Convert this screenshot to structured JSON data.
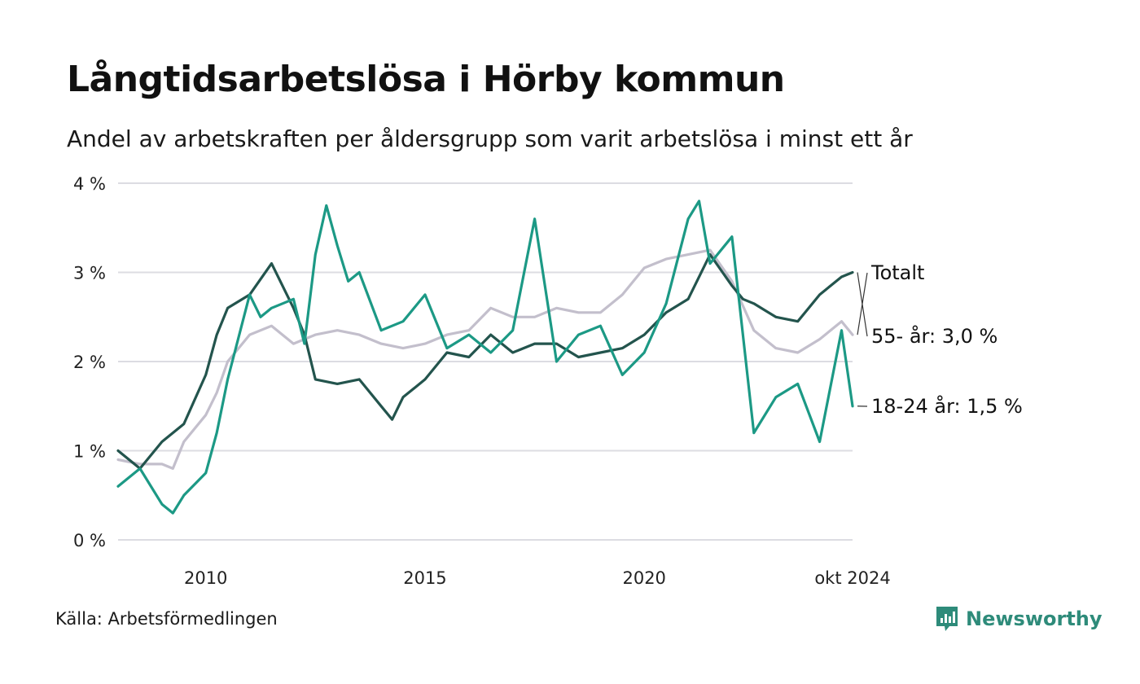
{
  "title": "Långtidsarbetslösa i Hörby kommun",
  "subtitle": "Andel av arbetskraften per åldersgrupp som varit arbetslösa i minst ett år",
  "source": "Källa: Arbetsförmedlingen",
  "brand": "Newsworthy",
  "chart_data": {
    "type": "line",
    "title": "Långtidsarbetslösa i Hörby kommun",
    "subtitle": "Andel av arbetskraften per åldersgrupp som varit arbetslösa i minst ett år",
    "xlabel": "",
    "ylabel": "",
    "x_range": [
      "2008-01",
      "2024-10"
    ],
    "ylim": [
      0,
      4
    ],
    "y_ticks": [
      {
        "value": 0,
        "label": "0 %"
      },
      {
        "value": 1,
        "label": "1 %"
      },
      {
        "value": 2,
        "label": "2 %"
      },
      {
        "value": 3,
        "label": "3 %"
      },
      {
        "value": 4,
        "label": "4 %"
      }
    ],
    "x_ticks": [
      {
        "date": "2010-01",
        "label": "2010"
      },
      {
        "date": "2015-01",
        "label": "2015"
      },
      {
        "date": "2020-01",
        "label": "2020"
      },
      {
        "date": "2024-10",
        "label": "okt 2024"
      }
    ],
    "grid": "horizontal",
    "legend": "direct labels at right end of lines",
    "series": [
      {
        "name": "Totalt",
        "end_label": "Totalt",
        "color": "#c3bfcc",
        "points": [
          [
            "2008-01",
            0.9
          ],
          [
            "2008-07",
            0.85
          ],
          [
            "2009-01",
            0.85
          ],
          [
            "2009-04",
            0.8
          ],
          [
            "2009-07",
            1.1
          ],
          [
            "2010-01",
            1.4
          ],
          [
            "2010-04",
            1.65
          ],
          [
            "2010-07",
            2.0
          ],
          [
            "2011-01",
            2.3
          ],
          [
            "2011-07",
            2.4
          ],
          [
            "2012-01",
            2.2
          ],
          [
            "2012-07",
            2.3
          ],
          [
            "2013-01",
            2.35
          ],
          [
            "2013-07",
            2.3
          ],
          [
            "2014-01",
            2.2
          ],
          [
            "2014-07",
            2.15
          ],
          [
            "2015-01",
            2.2
          ],
          [
            "2015-07",
            2.3
          ],
          [
            "2016-01",
            2.35
          ],
          [
            "2016-07",
            2.6
          ],
          [
            "2017-01",
            2.5
          ],
          [
            "2017-07",
            2.5
          ],
          [
            "2018-01",
            2.6
          ],
          [
            "2018-07",
            2.55
          ],
          [
            "2019-01",
            2.55
          ],
          [
            "2019-07",
            2.75
          ],
          [
            "2020-01",
            3.05
          ],
          [
            "2020-07",
            3.15
          ],
          [
            "2021-01",
            3.2
          ],
          [
            "2021-07",
            3.25
          ],
          [
            "2022-01",
            2.9
          ],
          [
            "2022-07",
            2.35
          ],
          [
            "2023-01",
            2.15
          ],
          [
            "2023-07",
            2.1
          ],
          [
            "2024-01",
            2.25
          ],
          [
            "2024-07",
            2.45
          ],
          [
            "2024-10",
            2.3
          ]
        ]
      },
      {
        "name": "55- år",
        "end_label": "55- år: 3,0 %",
        "color": "#23544d",
        "points": [
          [
            "2008-01",
            1.0
          ],
          [
            "2008-07",
            0.8
          ],
          [
            "2009-01",
            1.1
          ],
          [
            "2009-07",
            1.3
          ],
          [
            "2010-01",
            1.85
          ],
          [
            "2010-04",
            2.3
          ],
          [
            "2010-07",
            2.6
          ],
          [
            "2011-01",
            2.75
          ],
          [
            "2011-07",
            3.1
          ],
          [
            "2012-01",
            2.6
          ],
          [
            "2012-04",
            2.3
          ],
          [
            "2012-07",
            1.8
          ],
          [
            "2013-01",
            1.75
          ],
          [
            "2013-07",
            1.8
          ],
          [
            "2014-01",
            1.5
          ],
          [
            "2014-04",
            1.35
          ],
          [
            "2014-07",
            1.6
          ],
          [
            "2015-01",
            1.8
          ],
          [
            "2015-07",
            2.1
          ],
          [
            "2016-01",
            2.05
          ],
          [
            "2016-07",
            2.3
          ],
          [
            "2017-01",
            2.1
          ],
          [
            "2017-07",
            2.2
          ],
          [
            "2018-01",
            2.2
          ],
          [
            "2018-07",
            2.05
          ],
          [
            "2019-01",
            2.1
          ],
          [
            "2019-07",
            2.15
          ],
          [
            "2020-01",
            2.3
          ],
          [
            "2020-07",
            2.55
          ],
          [
            "2021-01",
            2.7
          ],
          [
            "2021-07",
            3.2
          ],
          [
            "2022-01",
            2.85
          ],
          [
            "2022-04",
            2.7
          ],
          [
            "2022-07",
            2.65
          ],
          [
            "2023-01",
            2.5
          ],
          [
            "2023-07",
            2.45
          ],
          [
            "2024-01",
            2.75
          ],
          [
            "2024-07",
            2.95
          ],
          [
            "2024-10",
            3.0
          ]
        ]
      },
      {
        "name": "18-24 år",
        "end_label": "18-24 år: 1,5 %",
        "color": "#1c9985",
        "points": [
          [
            "2008-01",
            0.6
          ],
          [
            "2008-07",
            0.8
          ],
          [
            "2009-01",
            0.4
          ],
          [
            "2009-04",
            0.3
          ],
          [
            "2009-07",
            0.5
          ],
          [
            "2010-01",
            0.75
          ],
          [
            "2010-04",
            1.2
          ],
          [
            "2010-07",
            1.8
          ],
          [
            "2011-01",
            2.75
          ],
          [
            "2011-04",
            2.5
          ],
          [
            "2011-07",
            2.6
          ],
          [
            "2012-01",
            2.7
          ],
          [
            "2012-04",
            2.2
          ],
          [
            "2012-07",
            3.2
          ],
          [
            "2012-10",
            3.75
          ],
          [
            "2013-01",
            3.3
          ],
          [
            "2013-04",
            2.9
          ],
          [
            "2013-07",
            3.0
          ],
          [
            "2014-01",
            2.35
          ],
          [
            "2014-07",
            2.45
          ],
          [
            "2015-01",
            2.75
          ],
          [
            "2015-07",
            2.15
          ],
          [
            "2016-01",
            2.3
          ],
          [
            "2016-07",
            2.1
          ],
          [
            "2017-01",
            2.35
          ],
          [
            "2017-07",
            3.6
          ],
          [
            "2018-01",
            2.0
          ],
          [
            "2018-07",
            2.3
          ],
          [
            "2019-01",
            2.4
          ],
          [
            "2019-07",
            1.85
          ],
          [
            "2020-01",
            2.1
          ],
          [
            "2020-07",
            2.65
          ],
          [
            "2021-01",
            3.6
          ],
          [
            "2021-04",
            3.8
          ],
          [
            "2021-07",
            3.1
          ],
          [
            "2022-01",
            3.4
          ],
          [
            "2022-07",
            1.2
          ],
          [
            "2023-01",
            1.6
          ],
          [
            "2023-07",
            1.75
          ],
          [
            "2024-01",
            1.1
          ],
          [
            "2024-07",
            2.35
          ],
          [
            "2024-10",
            1.5
          ]
        ]
      }
    ]
  }
}
